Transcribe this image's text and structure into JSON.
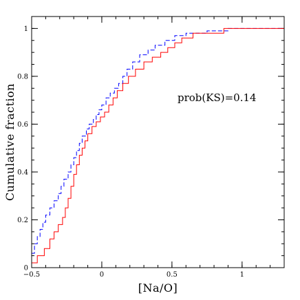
{
  "chart_data": {
    "type": "line",
    "xlabel": "[Na/O]",
    "ylabel": "Cumulative fraction",
    "xlim": [
      -0.5,
      1.3
    ],
    "ylim": [
      0,
      1.05
    ],
    "x_ticks": [
      {
        "value": -0.5,
        "label": "−0.5"
      },
      {
        "value": 0,
        "label": "0"
      },
      {
        "value": 0.5,
        "label": "0.5"
      },
      {
        "value": 1,
        "label": "1"
      }
    ],
    "y_ticks": [
      {
        "value": 0,
        "label": "0"
      },
      {
        "value": 0.2,
        "label": "0.2"
      },
      {
        "value": 0.4,
        "label": "0.4"
      },
      {
        "value": 0.6,
        "label": "0.6"
      },
      {
        "value": 0.8,
        "label": "0.8"
      },
      {
        "value": 1,
        "label": "1"
      }
    ],
    "x_minor_step": 0.1,
    "y_minor_step": 0.05,
    "annotation": "prob(KS)=0.14",
    "series": [
      {
        "color": "#0000ff",
        "style": "dashed",
        "points": [
          [
            -0.5,
            0.06
          ],
          [
            -0.48,
            0.1
          ],
          [
            -0.46,
            0.13
          ],
          [
            -0.44,
            0.16
          ],
          [
            -0.42,
            0.19
          ],
          [
            -0.4,
            0.22
          ],
          [
            -0.37,
            0.25
          ],
          [
            -0.34,
            0.28
          ],
          [
            -0.31,
            0.31
          ],
          [
            -0.29,
            0.34
          ],
          [
            -0.27,
            0.37
          ],
          [
            -0.24,
            0.4
          ],
          [
            -0.22,
            0.43
          ],
          [
            -0.2,
            0.46
          ],
          [
            -0.18,
            0.49
          ],
          [
            -0.16,
            0.52
          ],
          [
            -0.14,
            0.55
          ],
          [
            -0.11,
            0.58
          ],
          [
            -0.09,
            0.6
          ],
          [
            -0.06,
            0.62
          ],
          [
            -0.04,
            0.64
          ],
          [
            -0.02,
            0.66
          ],
          [
            0.0,
            0.68
          ],
          [
            0.03,
            0.71
          ],
          [
            0.06,
            0.73
          ],
          [
            0.09,
            0.75
          ],
          [
            0.12,
            0.77
          ],
          [
            0.15,
            0.8
          ],
          [
            0.18,
            0.83
          ],
          [
            0.22,
            0.86
          ],
          [
            0.27,
            0.89
          ],
          [
            0.33,
            0.91
          ],
          [
            0.38,
            0.93
          ],
          [
            0.45,
            0.95
          ],
          [
            0.52,
            0.97
          ],
          [
            0.6,
            0.98
          ],
          [
            0.75,
            0.99
          ],
          [
            0.9,
            1.0
          ],
          [
            1.3,
            1.0
          ]
        ]
      },
      {
        "color": "#ff0000",
        "style": "solid",
        "points": [
          [
            -0.5,
            0.02
          ],
          [
            -0.46,
            0.05
          ],
          [
            -0.41,
            0.08
          ],
          [
            -0.37,
            0.12
          ],
          [
            -0.34,
            0.15
          ],
          [
            -0.31,
            0.18
          ],
          [
            -0.28,
            0.21
          ],
          [
            -0.26,
            0.25
          ],
          [
            -0.24,
            0.29
          ],
          [
            -0.22,
            0.34
          ],
          [
            -0.2,
            0.39
          ],
          [
            -0.18,
            0.43
          ],
          [
            -0.16,
            0.47
          ],
          [
            -0.14,
            0.5
          ],
          [
            -0.12,
            0.53
          ],
          [
            -0.1,
            0.56
          ],
          [
            -0.07,
            0.59
          ],
          [
            -0.04,
            0.61
          ],
          [
            -0.01,
            0.63
          ],
          [
            0.02,
            0.65
          ],
          [
            0.05,
            0.68
          ],
          [
            0.08,
            0.71
          ],
          [
            0.11,
            0.74
          ],
          [
            0.15,
            0.77
          ],
          [
            0.19,
            0.8
          ],
          [
            0.24,
            0.83
          ],
          [
            0.3,
            0.86
          ],
          [
            0.36,
            0.88
          ],
          [
            0.42,
            0.9
          ],
          [
            0.47,
            0.92
          ],
          [
            0.52,
            0.94
          ],
          [
            0.57,
            0.96
          ],
          [
            0.65,
            0.98
          ],
          [
            0.87,
            1.0
          ],
          [
            1.3,
            1.0
          ]
        ]
      }
    ]
  }
}
